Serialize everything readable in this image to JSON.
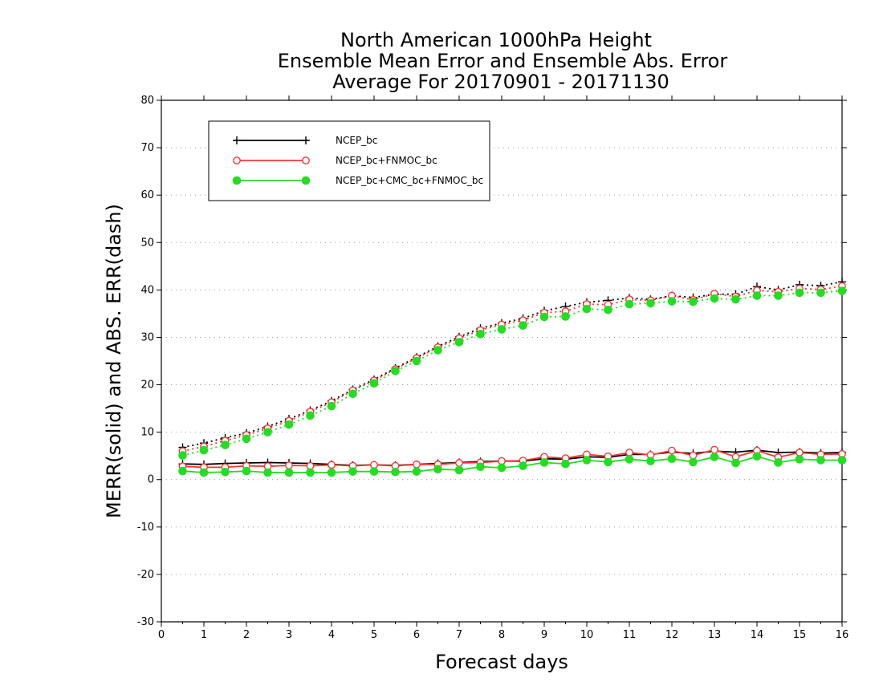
{
  "chart_data": {
    "type": "line",
    "title": [
      "North American 1000hPa Height",
      "Ensemble Mean Error and Ensemble Abs. Error",
      "Average For 20170901 - 20171130"
    ],
    "xlabel": "Forecast days",
    "ylabel": "MERR(solid) and ABS. ERR(dash)",
    "xlim": [
      0,
      16
    ],
    "ylim": [
      -30,
      80
    ],
    "xticks": [
      0,
      1,
      2,
      3,
      4,
      5,
      6,
      7,
      8,
      9,
      10,
      11,
      12,
      13,
      14,
      15,
      16
    ],
    "yticks": [
      -30,
      -20,
      -10,
      0,
      10,
      20,
      30,
      40,
      50,
      60,
      70,
      80
    ],
    "grid": "horizontal-dotted",
    "legend_position": "top-left",
    "x": [
      0.5,
      1,
      1.5,
      2,
      2.5,
      3,
      3.5,
      4,
      4.5,
      5,
      5.5,
      6,
      6.5,
      7,
      7.5,
      8,
      8.5,
      9,
      9.5,
      10,
      10.5,
      11,
      11.5,
      12,
      12.5,
      13,
      13.5,
      14,
      14.5,
      15,
      15.5,
      16
    ],
    "series": [
      {
        "name": "NCEP_bc",
        "color": "#000000",
        "marker": "plus",
        "mean_error": [
          3.3,
          3.2,
          3.4,
          3.5,
          3.6,
          3.5,
          3.4,
          3.2,
          3.0,
          3.1,
          3.0,
          3.2,
          3.4,
          3.6,
          3.8,
          3.9,
          3.9,
          4.4,
          4.3,
          4.8,
          4.7,
          5.3,
          5.3,
          5.8,
          5.5,
          6.0,
          5.8,
          6.2,
          5.7,
          5.8,
          5.6,
          5.7
        ],
        "abs_error": [
          6.8,
          7.7,
          8.8,
          9.8,
          11.2,
          12.8,
          14.6,
          16.6,
          19.0,
          21.1,
          23.5,
          25.8,
          28.1,
          30.1,
          31.9,
          33.0,
          34.0,
          35.6,
          36.5,
          37.4,
          37.8,
          38.3,
          38.0,
          38.8,
          38.4,
          39.1,
          39.1,
          40.7,
          40.0,
          41.1,
          40.9,
          41.7
        ]
      },
      {
        "name": "NCEP_bc+FNMOC_bc",
        "color": "#ff3333",
        "marker": "open-circle",
        "mean_error": [
          2.8,
          2.6,
          2.6,
          2.9,
          2.8,
          3.0,
          2.9,
          3.1,
          2.9,
          3.1,
          2.9,
          3.2,
          3.2,
          3.5,
          3.6,
          3.9,
          4.0,
          4.8,
          4.5,
          5.3,
          4.9,
          5.7,
          5.2,
          6.1,
          5.1,
          6.3,
          4.8,
          6.1,
          4.7,
          5.7,
          5.3,
          5.4
        ],
        "abs_error": [
          6.0,
          7.0,
          8.2,
          9.4,
          10.8,
          12.4,
          14.3,
          16.3,
          18.8,
          20.9,
          23.3,
          25.6,
          27.9,
          29.8,
          31.5,
          32.7,
          33.6,
          35.2,
          35.5,
          37.0,
          36.9,
          38.0,
          37.8,
          38.8,
          37.9,
          39.2,
          38.6,
          39.9,
          39.6,
          40.3,
          40.1,
          40.8
        ]
      },
      {
        "name": "NCEP_bc+CMC_bc+FNMOC_bc",
        "color": "#22dd22",
        "marker": "filled-circle",
        "mean_error": [
          1.8,
          1.5,
          1.6,
          1.8,
          1.5,
          1.5,
          1.5,
          1.5,
          1.7,
          1.7,
          1.6,
          1.7,
          2.2,
          2.0,
          2.7,
          2.5,
          2.9,
          3.6,
          3.3,
          4.1,
          3.7,
          4.3,
          3.9,
          4.4,
          3.7,
          4.8,
          3.5,
          4.9,
          3.6,
          4.3,
          4.1,
          4.1
        ],
        "abs_error": [
          5.1,
          6.2,
          7.3,
          8.6,
          10.0,
          11.6,
          13.5,
          15.5,
          18.1,
          20.3,
          22.9,
          25.0,
          27.3,
          29.0,
          30.7,
          31.7,
          32.5,
          34.3,
          34.4,
          36.0,
          35.8,
          37.0,
          37.2,
          37.6,
          37.5,
          38.2,
          38.0,
          38.8,
          38.8,
          39.4,
          39.4,
          39.8
        ]
      }
    ]
  }
}
